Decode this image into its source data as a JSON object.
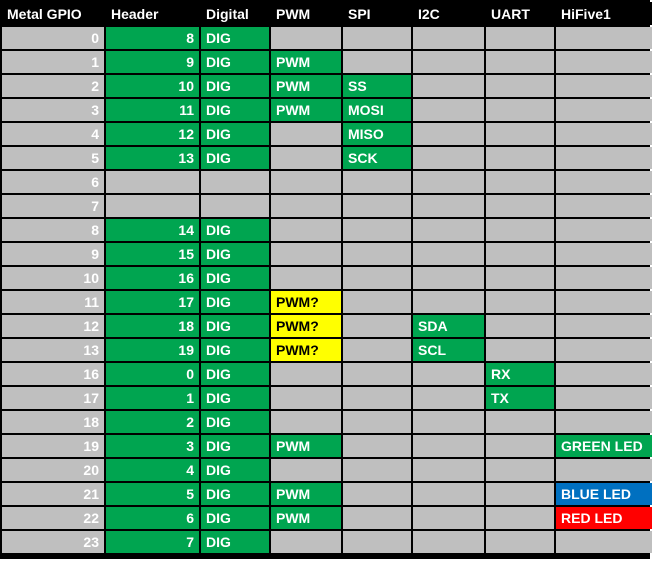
{
  "colors": {
    "green": "#00a550",
    "yellow": "#ffff00",
    "gray": "#bfbfbf",
    "blue": "#0070c0",
    "red": "#ff0000",
    "header_bg": "#000000"
  },
  "headers": [
    "Metal GPIO",
    "Header",
    "Digital",
    "PWM",
    "SPI",
    "I2C",
    "UART",
    "HiFive1"
  ],
  "rows": [
    {
      "gpio": "0",
      "header": "8",
      "digital": "DIG",
      "pwm": "",
      "spi": "",
      "i2c": "",
      "uart": "",
      "hifive1": ""
    },
    {
      "gpio": "1",
      "header": "9",
      "digital": "DIG",
      "pwm": "PWM",
      "spi": "",
      "i2c": "",
      "uart": "",
      "hifive1": ""
    },
    {
      "gpio": "2",
      "header": "10",
      "digital": "DIG",
      "pwm": "PWM",
      "spi": "SS",
      "i2c": "",
      "uart": "",
      "hifive1": ""
    },
    {
      "gpio": "3",
      "header": "11",
      "digital": "DIG",
      "pwm": "PWM",
      "spi": "MOSI",
      "i2c": "",
      "uart": "",
      "hifive1": ""
    },
    {
      "gpio": "4",
      "header": "12",
      "digital": "DIG",
      "pwm": "",
      "spi": "MISO",
      "i2c": "",
      "uart": "",
      "hifive1": ""
    },
    {
      "gpio": "5",
      "header": "13",
      "digital": "DIG",
      "pwm": "",
      "spi": "SCK",
      "i2c": "",
      "uart": "",
      "hifive1": ""
    },
    {
      "gpio": "6",
      "header": "",
      "digital": "",
      "pwm": "",
      "spi": "",
      "i2c": "",
      "uart": "",
      "hifive1": ""
    },
    {
      "gpio": "7",
      "header": "",
      "digital": "",
      "pwm": "",
      "spi": "",
      "i2c": "",
      "uart": "",
      "hifive1": ""
    },
    {
      "gpio": "8",
      "header": "14",
      "digital": "DIG",
      "pwm": "",
      "spi": "",
      "i2c": "",
      "uart": "",
      "hifive1": ""
    },
    {
      "gpio": "9",
      "header": "15",
      "digital": "DIG",
      "pwm": "",
      "spi": "",
      "i2c": "",
      "uart": "",
      "hifive1": ""
    },
    {
      "gpio": "10",
      "header": "16",
      "digital": "DIG",
      "pwm": "",
      "spi": "",
      "i2c": "",
      "uart": "",
      "hifive1": ""
    },
    {
      "gpio": "11",
      "header": "17",
      "digital": "DIG",
      "pwm": "PWM?",
      "spi": "",
      "i2c": "",
      "uart": "",
      "hifive1": ""
    },
    {
      "gpio": "12",
      "header": "18",
      "digital": "DIG",
      "pwm": "PWM?",
      "spi": "",
      "i2c": "SDA",
      "uart": "",
      "hifive1": ""
    },
    {
      "gpio": "13",
      "header": "19",
      "digital": "DIG",
      "pwm": "PWM?",
      "spi": "",
      "i2c": "SCL",
      "uart": "",
      "hifive1": ""
    },
    {
      "gpio": "16",
      "header": "0",
      "digital": "DIG",
      "pwm": "",
      "spi": "",
      "i2c": "",
      "uart": "RX",
      "hifive1": ""
    },
    {
      "gpio": "17",
      "header": "1",
      "digital": "DIG",
      "pwm": "",
      "spi": "",
      "i2c": "",
      "uart": "TX",
      "hifive1": ""
    },
    {
      "gpio": "18",
      "header": "2",
      "digital": "DIG",
      "pwm": "",
      "spi": "",
      "i2c": "",
      "uart": "",
      "hifive1": ""
    },
    {
      "gpio": "19",
      "header": "3",
      "digital": "DIG",
      "pwm": "PWM",
      "spi": "",
      "i2c": "",
      "uart": "",
      "hifive1": "GREEN LED"
    },
    {
      "gpio": "20",
      "header": "4",
      "digital": "DIG",
      "pwm": "",
      "spi": "",
      "i2c": "",
      "uart": "",
      "hifive1": ""
    },
    {
      "gpio": "21",
      "header": "5",
      "digital": "DIG",
      "pwm": "PWM",
      "spi": "",
      "i2c": "",
      "uart": "",
      "hifive1": "BLUE LED"
    },
    {
      "gpio": "22",
      "header": "6",
      "digital": "DIG",
      "pwm": "PWM",
      "spi": "",
      "i2c": "",
      "uart": "",
      "hifive1": "RED LED"
    },
    {
      "gpio": "23",
      "header": "7",
      "digital": "DIG",
      "pwm": "",
      "spi": "",
      "i2c": "",
      "uart": "",
      "hifive1": ""
    }
  ]
}
